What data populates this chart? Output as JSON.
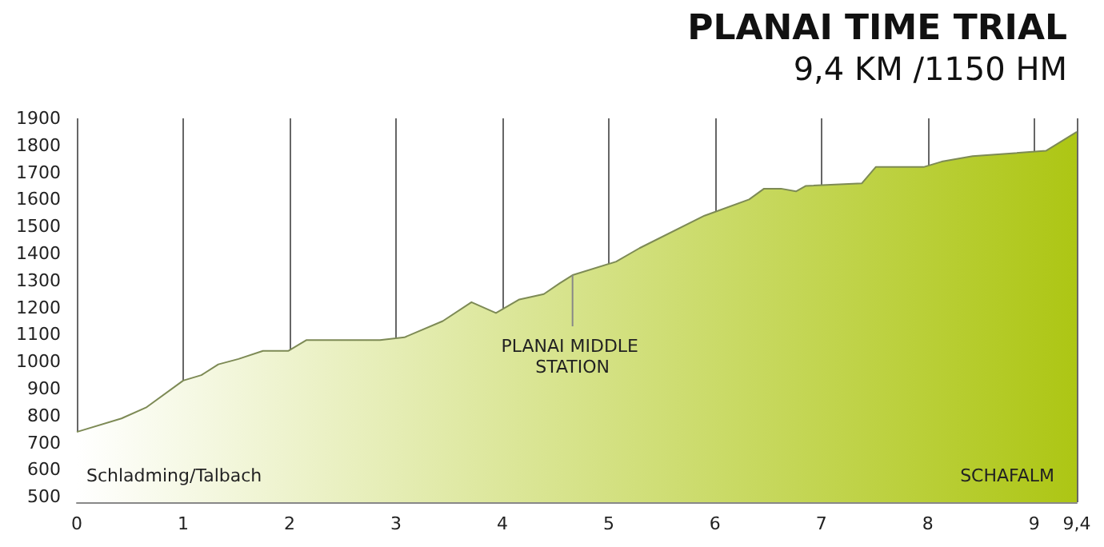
{
  "chart_data": {
    "type": "area",
    "title": "PLANAI TIME TRIAL",
    "subtitle": "9,4 KM /1150 HM",
    "x": [
      0,
      0.42,
      0.65,
      1.0,
      1.17,
      1.33,
      1.52,
      1.75,
      1.99,
      2.16,
      2.85,
      3.08,
      3.44,
      3.71,
      3.94,
      4.16,
      4.39,
      4.54,
      4.66,
      5.07,
      5.29,
      5.9,
      6.32,
      6.46,
      6.62,
      6.76,
      6.85,
      7.38,
      7.51,
      7.81,
      7.96,
      8.13,
      8.42,
      9.11,
      9.4
    ],
    "series": [
      {
        "color": "#adc614",
        "values": [
          740,
          790,
          830,
          930,
          950,
          990,
          1010,
          1040,
          1040,
          1080,
          1080,
          1090,
          1150,
          1220,
          1180,
          1230,
          1250,
          1290,
          1320,
          1370,
          1420,
          1540,
          1600,
          1640,
          1640,
          1630,
          1650,
          1660,
          1720,
          1720,
          1720,
          1740,
          1760,
          1780,
          1850
        ]
      }
    ],
    "xlim": [
      0,
      9.4
    ],
    "xticks": [
      0,
      1,
      2,
      3,
      4,
      5,
      6,
      7,
      8,
      9,
      {
        "value": 9.4,
        "label": "9,4"
      }
    ],
    "ylim": [
      480,
      1900
    ],
    "yticks": [
      500,
      600,
      700,
      800,
      900,
      1000,
      1100,
      1200,
      1300,
      1400,
      1500,
      1600,
      1700,
      1800,
      1900
    ],
    "grid": "x",
    "annotations": [
      "Schladming/Talbach",
      "SCHAFALM",
      {
        "text": "PLANAI MIDDLE STATION",
        "x": 4.66,
        "y": 1320
      }
    ]
  }
}
